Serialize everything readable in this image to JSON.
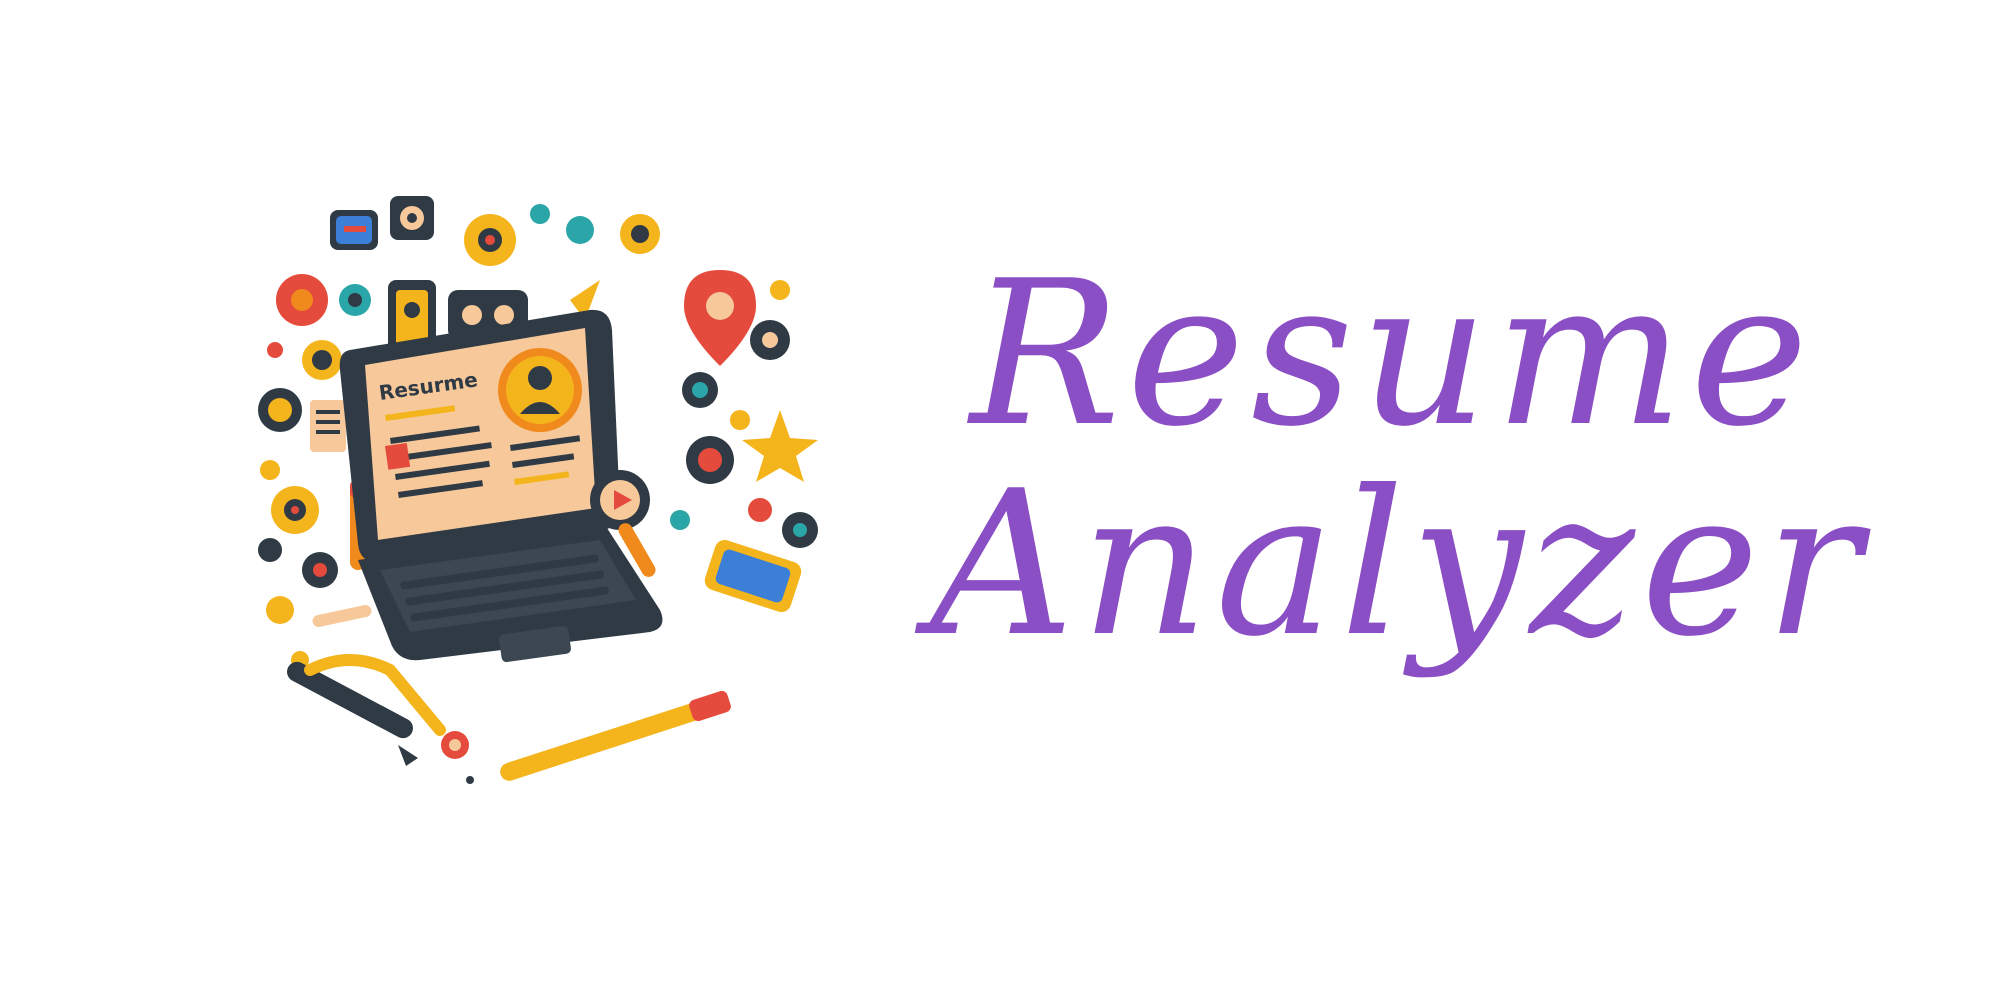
{
  "brand": {
    "title_line_1": "Resume",
    "title_line_2": "Analyzer",
    "title_color": "#8a4fc4"
  },
  "illustration": {
    "screen_label": "Resurme",
    "icon": "laptop-resume-illustration",
    "palette": {
      "dark": "#2f3a45",
      "teal": "#2aa6a8",
      "yellow": "#f4b51c",
      "orange": "#f08a1c",
      "red": "#e54b3c",
      "peach": "#f6c89a",
      "blue": "#3b7fd6"
    }
  }
}
